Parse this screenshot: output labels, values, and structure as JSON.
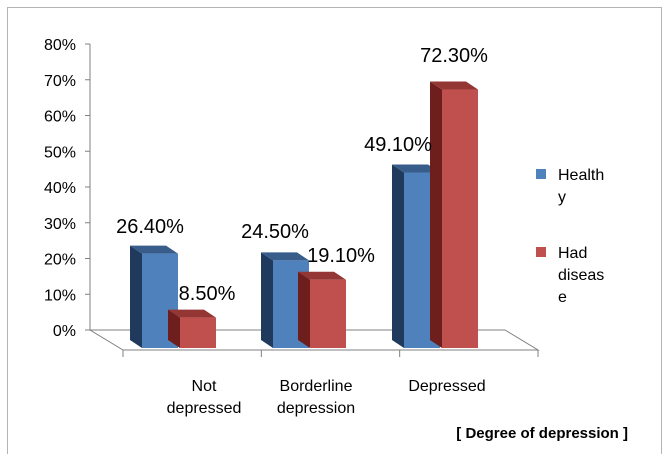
{
  "chart_data": {
    "type": "bar",
    "categories": [
      [
        "Not",
        "depressed"
      ],
      [
        "Borderline",
        "depression"
      ],
      [
        "Depressed"
      ]
    ],
    "series": [
      {
        "name": [
          "Health",
          "y"
        ],
        "values": [
          26.4,
          24.5,
          49.1
        ],
        "labels": [
          "26.40%",
          "24.50%",
          "49.10%"
        ]
      },
      {
        "name": [
          "Had",
          "diseas",
          "e"
        ],
        "values": [
          8.5,
          19.1,
          72.3
        ],
        "labels": [
          "8.50%",
          "19.10%",
          "72.30%"
        ]
      }
    ],
    "yticks": [
      "0%",
      "10%",
      "20%",
      "30%",
      "40%",
      "50%",
      "60%",
      "70%",
      "80%"
    ],
    "ylim": [
      0,
      80
    ],
    "xlabel": "[ Degree of depression ]",
    "colors": {
      "series1_front": "#4f81bd",
      "series1_side": "#1f3a5c",
      "series1_top": "#385d8a",
      "series2_front": "#c0504d",
      "series2_side": "#6e1f1d",
      "series2_top": "#943634",
      "floor": "#ffffff",
      "axis": "#808080"
    },
    "legend_position": "right"
  }
}
